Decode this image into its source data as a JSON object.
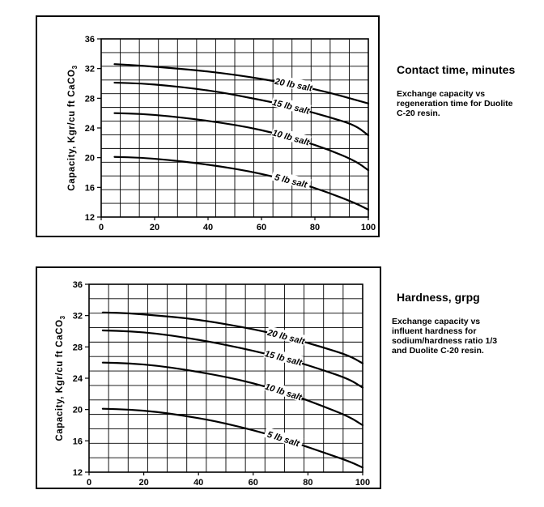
{
  "chart_data": [
    {
      "type": "line",
      "title": "Contact time,   minutes",
      "caption": [
        "Exchange capacity vs",
        "regeneration time for Duolite",
        "C-20 resin."
      ],
      "xlabel": "",
      "ylabel": "Capacity,  Kgr/cu ft  CaCO3",
      "xlim": [
        0,
        100
      ],
      "ylim": [
        12,
        36
      ],
      "x_ticks": [
        0,
        20,
        40,
        60,
        80,
        100
      ],
      "y_ticks": [
        12,
        16,
        20,
        24,
        28,
        32,
        36
      ],
      "grid": true,
      "series": [
        {
          "name": "20 lb salt",
          "x": [
            5,
            15,
            25,
            35,
            45,
            55,
            65,
            75,
            85,
            95,
            100
          ],
          "y": [
            32.6,
            32.4,
            32.1,
            31.8,
            31.4,
            30.9,
            30.3,
            29.6,
            28.8,
            27.8,
            27.3
          ]
        },
        {
          "name": "15 lb salt",
          "x": [
            5,
            15,
            25,
            35,
            45,
            55,
            65,
            75,
            85,
            95,
            100
          ],
          "y": [
            30.1,
            30.0,
            29.7,
            29.3,
            28.8,
            28.1,
            27.4,
            26.5,
            25.5,
            24.4,
            23.0
          ]
        },
        {
          "name": "10 lb salt",
          "x": [
            5,
            15,
            25,
            35,
            45,
            55,
            65,
            75,
            85,
            95,
            100
          ],
          "y": [
            26.0,
            25.9,
            25.6,
            25.2,
            24.7,
            24.1,
            23.3,
            22.3,
            21.1,
            19.6,
            18.3
          ]
        },
        {
          "name": "5 lb salt",
          "x": [
            5,
            15,
            25,
            35,
            45,
            55,
            65,
            75,
            85,
            95,
            100
          ],
          "y": [
            20.1,
            20.0,
            19.7,
            19.3,
            18.8,
            18.2,
            17.4,
            16.5,
            15.3,
            13.9,
            13.0
          ]
        }
      ]
    },
    {
      "type": "line",
      "title": "Hardness, grpg",
      "caption": [
        "Exchange capacity vs",
        "influent hardness for",
        "sodium/hardness ratio 1/3",
        "and Duolite C-20 resin."
      ],
      "xlabel": "",
      "ylabel": "Capacity,  Kgr/cu ft  CaCO3",
      "xlim": [
        0,
        100
      ],
      "ylim": [
        12,
        36
      ],
      "x_ticks": [
        0,
        20,
        40,
        60,
        80,
        100
      ],
      "y_ticks": [
        12,
        16,
        20,
        24,
        28,
        32,
        36
      ],
      "grid": true,
      "series": [
        {
          "name": "20 lb salt",
          "x": [
            5,
            15,
            25,
            35,
            45,
            55,
            65,
            75,
            85,
            95,
            100
          ],
          "y": [
            32.4,
            32.3,
            32.0,
            31.7,
            31.2,
            30.6,
            29.9,
            29.0,
            28.0,
            26.9,
            25.9
          ]
        },
        {
          "name": "15 lb salt",
          "x": [
            5,
            15,
            25,
            35,
            45,
            55,
            65,
            75,
            85,
            95,
            100
          ],
          "y": [
            30.1,
            30.0,
            29.7,
            29.2,
            28.6,
            27.9,
            27.1,
            26.2,
            25.1,
            23.9,
            22.8
          ]
        },
        {
          "name": "10 lb salt",
          "x": [
            5,
            15,
            25,
            35,
            45,
            55,
            65,
            75,
            85,
            95,
            100
          ],
          "y": [
            26.0,
            25.9,
            25.6,
            25.1,
            24.5,
            23.8,
            22.9,
            21.8,
            20.5,
            19.1,
            18.0
          ]
        },
        {
          "name": "5 lb salt",
          "x": [
            5,
            15,
            25,
            35,
            45,
            55,
            65,
            75,
            85,
            95,
            100
          ],
          "y": [
            20.1,
            20.0,
            19.7,
            19.2,
            18.6,
            17.8,
            16.9,
            15.8,
            14.6,
            13.4,
            12.6
          ]
        }
      ]
    }
  ]
}
